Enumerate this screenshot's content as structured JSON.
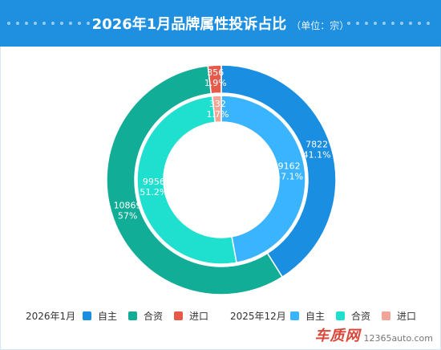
{
  "header": {
    "title": "2026年1月品牌属性投诉占比",
    "unit": "（单位：宗）"
  },
  "colors": {
    "header_bg": "#1f8fe0",
    "outer": [
      "#1a8ee0",
      "#12ad96",
      "#e65a4a"
    ],
    "inner": [
      "#3bb4ff",
      "#1fe0cf",
      "#f0a596"
    ]
  },
  "chart_data": {
    "type": "pie",
    "subtype": "nested-donut",
    "series": [
      {
        "name": "2026年1月",
        "ring": "outer",
        "categories": [
          "自主",
          "合资",
          "进口"
        ],
        "values": [
          7822,
          10869,
          356
        ],
        "labels": [
          {
            "value": "7822",
            "percent": "41.1%"
          },
          {
            "value": "10869",
            "percent": "57%"
          },
          {
            "value": "356",
            "percent": "1.9%"
          }
        ]
      },
      {
        "name": "2025年12月",
        "ring": "inner",
        "categories": [
          "自主",
          "合资",
          "进口"
        ],
        "values": [
          9162,
          9956,
          332
        ],
        "labels": [
          {
            "value": "9162",
            "percent": "47.1%"
          },
          {
            "value": "9956",
            "percent": "51.2%"
          },
          {
            "value": "332",
            "percent": "1.7%"
          }
        ]
      }
    ],
    "legend_position": "bottom"
  },
  "legend": {
    "groups": [
      {
        "title": "2026年1月",
        "items": [
          "自主",
          "合资",
          "进口"
        ]
      },
      {
        "title": "2025年12月",
        "items": [
          "自主",
          "合资",
          "进口"
        ]
      }
    ]
  },
  "footer": {
    "logo_text": "车质网",
    "url": "12365auto.com"
  }
}
